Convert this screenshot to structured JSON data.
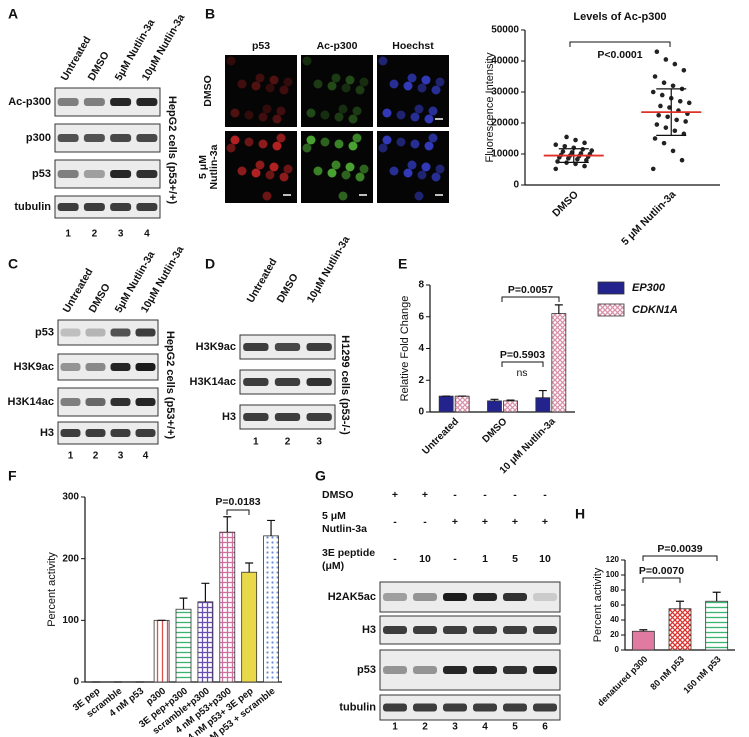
{
  "panel_letters": [
    "A",
    "B",
    "C",
    "D",
    "E",
    "F",
    "G",
    "H"
  ],
  "blots": [
    {
      "columns": [
        "Untreated",
        "DMSO",
        "5μM Nutlin-3a",
        "10μM Nutlin-3a"
      ],
      "rows": [
        "Ac-p300",
        "p300",
        "p53",
        "tubulin"
      ],
      "side_label": "HepG2 cells (p53+/+)",
      "lanes": [
        1,
        2,
        3,
        4
      ]
    },
    {
      "columns": [
        "Untreated",
        "DMSO",
        "5μM Nutlin-3a",
        "10μM Nutlin-3a"
      ],
      "rows": [
        "p53",
        "H3K9ac",
        "H3K14ac",
        "H3"
      ],
      "side_label": "HepG2 cells (p53+/+)",
      "lanes": [
        1,
        2,
        3,
        4
      ]
    },
    {
      "columns": [
        "Untreated",
        "DMSO",
        "10μM Nutlin-3a"
      ],
      "rows": [
        "H3K9ac",
        "H3K14ac",
        "H3"
      ],
      "side_label": "H1299 cells (p53-/-)",
      "lanes": [
        1,
        2,
        3
      ]
    },
    {
      "rows": [
        "H2AK5ac",
        "H3",
        "p53",
        "tubulin"
      ],
      "lanes": [
        1,
        2,
        3,
        4,
        5,
        6
      ]
    }
  ],
  "micrograph": {
    "columns": [
      "p53",
      "Ac-p300",
      "Hoechst"
    ],
    "rows": [
      [
        "DMSO"
      ],
      [
        "5 μM",
        "Nutlin-3a"
      ]
    ]
  },
  "treatment_table": {
    "rows": [
      {
        "label": [
          "DMSO"
        ],
        "cells": [
          "+",
          "+",
          "-",
          "-",
          "-",
          "-"
        ]
      },
      {
        "label": [
          "5 μM",
          "Nutlin-3a"
        ],
        "cells": [
          "-",
          "-",
          "+",
          "+",
          "+",
          "+"
        ]
      },
      {
        "label": [
          "3E peptide",
          "(μM)"
        ],
        "cells": [
          "-",
          "10",
          "-",
          "1",
          "5",
          "10"
        ]
      }
    ]
  },
  "chart_data": [
    {
      "type": "strip",
      "title": "Levels of Ac-p300",
      "y_label": "Fluorescence Intensity",
      "categories": [
        "DMSO",
        "5 μM Nutlin-3a"
      ],
      "values": [
        [
          5200,
          6100,
          6800,
          7200,
          7600,
          8000,
          8300,
          8600,
          8900,
          9100,
          9300,
          9500,
          9700,
          10000,
          10200,
          10500,
          10800,
          11100,
          11500,
          12000,
          12500,
          13000,
          13600,
          14500,
          15500
        ],
        [
          5200,
          8000,
          11000,
          13500,
          15000,
          16500,
          17500,
          18500,
          19500,
          20500,
          21000,
          22000,
          22500,
          23000,
          24000,
          25000,
          25500,
          26500,
          27000,
          28000,
          29000,
          30000,
          31000,
          32000,
          33000,
          35000,
          37000,
          39000,
          40500,
          43000
        ]
      ],
      "means": [
        9500,
        23500
      ],
      "sds": [
        2200,
        7500
      ],
      "point_color": "#222222",
      "mean_color": "#e0302a",
      "ylim": [
        0,
        50000
      ],
      "yticks": [
        0,
        10000,
        20000,
        30000,
        40000,
        50000
      ],
      "annotations": [
        "P<0.0001"
      ]
    },
    {
      "type": "bar",
      "y_label": "Relative Fold Change",
      "categories": [
        "Untreated",
        "DMSO",
        "10 μM Nutlin-3a"
      ],
      "series": [
        {
          "name": "EP300",
          "color": "#23238e",
          "pattern": "solid",
          "values": [
            1,
            0.7,
            0.9
          ],
          "errors": [
            0,
            0.1,
            0.45
          ]
        },
        {
          "name": "CDKN1A",
          "color": "#d98fa8",
          "pattern": "crosshatch",
          "values": [
            1,
            0.7,
            6.2
          ],
          "errors": [
            0,
            0.05,
            0.55
          ]
        }
      ],
      "legend": "right",
      "ylim": [
        0,
        8
      ],
      "yticks": [
        0,
        2,
        4,
        6,
        8
      ],
      "annotations": [
        "P=0.5903",
        "ns",
        "P=0.0057"
      ]
    },
    {
      "type": "bar",
      "y_label": "Percent activity",
      "categories": [
        "3E pep",
        "scramble",
        "4 nM p53",
        "p300",
        "3E pep+p300",
        "scramble+p300",
        "4 nM p53+p300",
        "4 nM p53+ 3E pep",
        "4 nM p53 + scramble"
      ],
      "values": [
        0,
        0,
        0,
        100,
        118,
        130,
        243,
        178,
        237
      ],
      "errors": [
        0,
        0,
        0,
        0,
        18,
        30,
        25,
        15,
        25
      ],
      "colors": [
        "#555555",
        "#555555",
        "#555555",
        "#d9534f",
        "#3cb371",
        "#6a4fb3",
        "#d070a0",
        "#e8d84a",
        "#6a8fd8"
      ],
      "patterns": [
        "solid",
        "solid",
        "solid",
        "vertical",
        "horizontal",
        "grid",
        "grid",
        "solid",
        "dots"
      ],
      "ylim": [
        0,
        300
      ],
      "yticks": [
        0,
        100,
        200,
        300
      ],
      "annotations": [
        "P=0.0183"
      ]
    },
    {
      "type": "bar",
      "y_label": "Percent activity",
      "categories": [
        "denatured p300",
        "80 nM p53",
        "160 nM p53"
      ],
      "values": [
        25,
        55,
        65
      ],
      "errors": [
        2,
        10,
        12
      ],
      "colors": [
        "#e07aa0",
        "#d9302a",
        "#3cb371"
      ],
      "patterns": [
        "solid",
        "crosshatch",
        "horizontal"
      ],
      "ylim": [
        0,
        120
      ],
      "yticks": [
        0,
        20,
        40,
        60,
        80,
        100,
        120
      ],
      "annotations": [
        "P=0.0070",
        "P=0.0039"
      ]
    }
  ]
}
